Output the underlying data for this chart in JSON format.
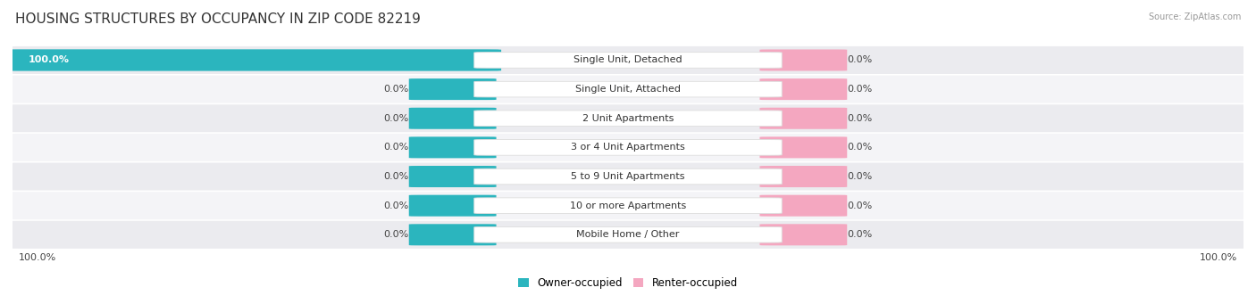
{
  "title": "HOUSING STRUCTURES BY OCCUPANCY IN ZIP CODE 82219",
  "source": "Source: ZipAtlas.com",
  "categories": [
    "Single Unit, Detached",
    "Single Unit, Attached",
    "2 Unit Apartments",
    "3 or 4 Unit Apartments",
    "5 to 9 Unit Apartments",
    "10 or more Apartments",
    "Mobile Home / Other"
  ],
  "owner_values": [
    100.0,
    0.0,
    0.0,
    0.0,
    0.0,
    0.0,
    0.0
  ],
  "renter_values": [
    0.0,
    0.0,
    0.0,
    0.0,
    0.0,
    0.0,
    0.0
  ],
  "owner_color": "#2BB5BE",
  "renter_color": "#F4A7C0",
  "row_colors": [
    "#EBEBEF",
    "#F4F4F7"
  ],
  "center_box_color": "#FFFFFF",
  "center_box_edge": "#DDDDDD",
  "title_fontsize": 11,
  "label_fontsize": 8,
  "category_fontsize": 8,
  "legend_fontsize": 8.5,
  "axis_left": "100.0%",
  "axis_right": "100.0%"
}
